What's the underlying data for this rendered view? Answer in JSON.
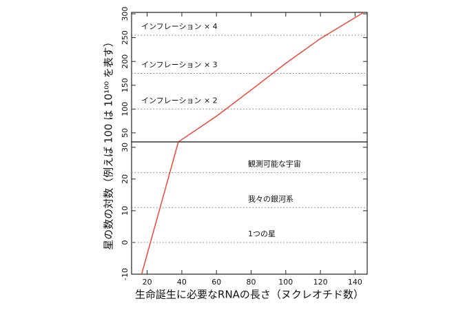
{
  "chart_data": [
    {
      "type": "line",
      "ylabel": "星の数の対数（例えば 100 は 10¹⁰⁰ を表す）",
      "xlim": [
        11,
        147
      ],
      "ylim": [
        31,
        303
      ],
      "yticks": [
        50,
        100,
        150,
        200,
        250,
        300
      ],
      "series": [
        {
          "color": "#ff2a1a",
          "x": [
            38,
            60,
            80,
            100,
            120,
            145
          ],
          "values": [
            31,
            85,
            140,
            196,
            248,
            303
          ]
        }
      ],
      "hlines": [
        {
          "value": 100,
          "label": "インフレーション × 2"
        },
        {
          "value": 175,
          "label": "インフレーション × 3"
        },
        {
          "value": 255,
          "label": "インフレーション × 4"
        }
      ]
    },
    {
      "type": "line",
      "xlabel": "生命誕生に必要なRNAの長さ（ヌクレオチド数）",
      "xlim": [
        11,
        147
      ],
      "xticks": [
        20,
        40,
        60,
        80,
        100,
        120,
        140
      ],
      "ylim": [
        -10,
        31.7
      ],
      "yticks": [
        -10,
        0,
        10,
        20,
        30
      ],
      "series": [
        {
          "color": "#ff2a1a",
          "x": [
            16.8,
            38
          ],
          "values": [
            -10,
            31.7
          ]
        }
      ],
      "hlines": [
        {
          "value": 0,
          "label": "1つの星"
        },
        {
          "value": 11,
          "label": "我々の銀河系"
        },
        {
          "value": 22,
          "label": "観測可能な宇宙"
        }
      ]
    }
  ]
}
